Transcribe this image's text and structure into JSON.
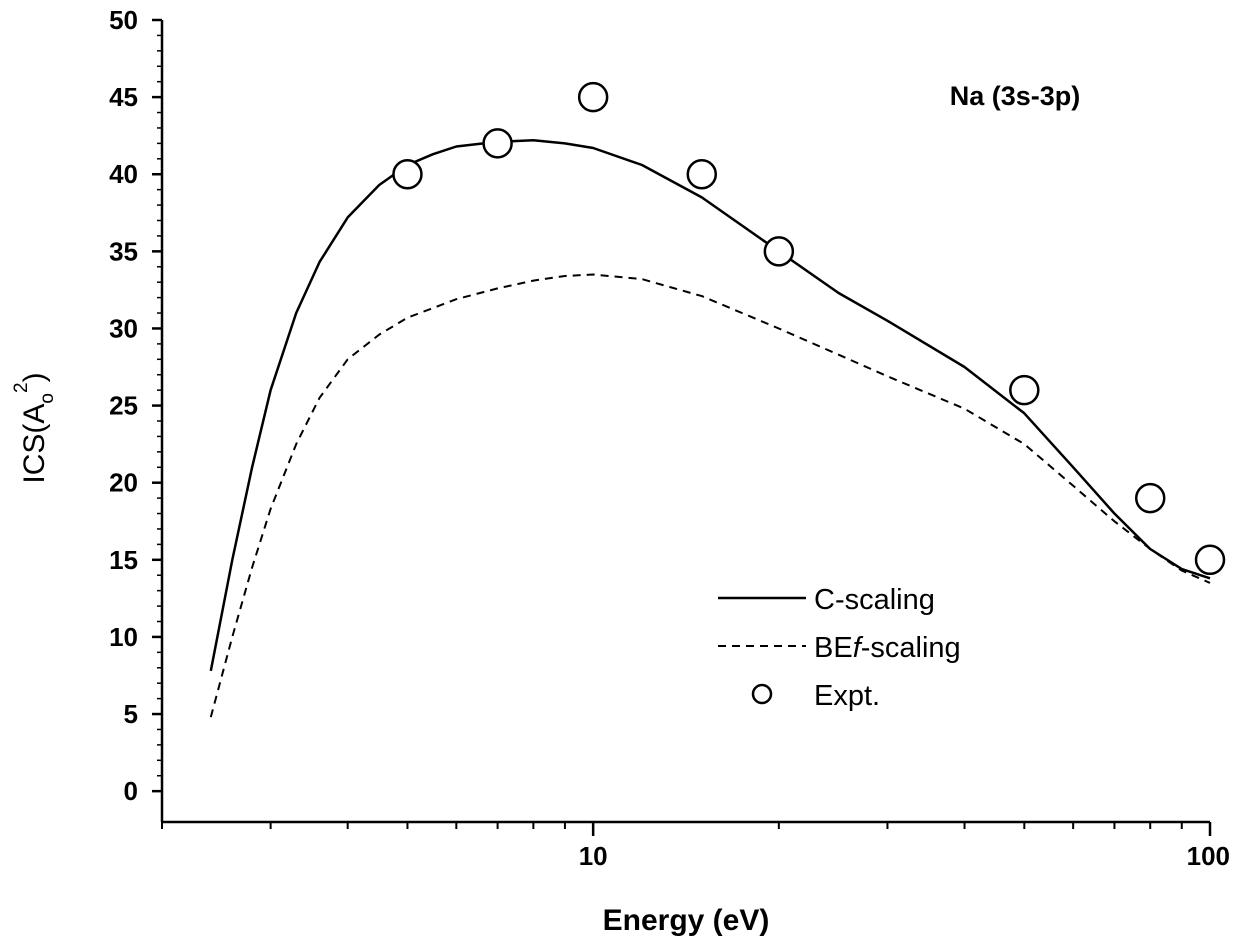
{
  "chart_data": {
    "type": "line",
    "title": "",
    "panel_label": "Na (3s-3p)",
    "xlabel": "Energy (eV)",
    "ylabel": {
      "base": "ICS(A",
      "subscript": "o",
      "superscript": "2",
      "close": ")"
    },
    "x_scale": "log",
    "xlim": [
      2,
      100
    ],
    "ylim": [
      -2,
      50
    ],
    "x_ticks_major": [
      10,
      100
    ],
    "x_tick_labels": [
      "10",
      "100"
    ],
    "x_ticks_minor": [
      2,
      3,
      4,
      5,
      6,
      7,
      8,
      9,
      20,
      30,
      40,
      50,
      60,
      70,
      80,
      90
    ],
    "y_ticks": [
      0,
      5,
      10,
      15,
      20,
      25,
      30,
      35,
      40,
      45,
      50
    ],
    "y_tick_labels": [
      "0",
      "5",
      "10",
      "15",
      "20",
      "25",
      "30",
      "35",
      "40",
      "45",
      "50"
    ],
    "grid": false,
    "legend_position": "bottom-right",
    "series": [
      {
        "name": "C-scaling",
        "style": "solid",
        "x": [
          2.4,
          2.6,
          2.8,
          3.0,
          3.3,
          3.6,
          4.0,
          4.5,
          5.0,
          5.5,
          6.0,
          7.0,
          8.0,
          9.0,
          10.0,
          12.0,
          15.0,
          20.0,
          25.0,
          30.0,
          40.0,
          50.0,
          60.0,
          70.0,
          80.0,
          90.0,
          100.0
        ],
        "y": [
          7.8,
          15.0,
          21.0,
          26.0,
          31.0,
          34.3,
          37.2,
          39.3,
          40.6,
          41.3,
          41.8,
          42.1,
          42.2,
          42.0,
          41.7,
          40.6,
          38.5,
          35.0,
          32.3,
          30.5,
          27.5,
          24.5,
          21.0,
          18.0,
          15.7,
          14.4,
          13.8
        ]
      },
      {
        "name": "BEf-scaling",
        "style": "dashed",
        "x": [
          2.4,
          2.6,
          2.8,
          3.0,
          3.3,
          3.6,
          4.0,
          4.5,
          5.0,
          6.0,
          7.0,
          8.0,
          9.0,
          10.0,
          12.0,
          15.0,
          20.0,
          25.0,
          30.0,
          40.0,
          50.0,
          60.0,
          70.0,
          80.0,
          90.0,
          100.0
        ],
        "y": [
          4.8,
          10.0,
          14.5,
          18.3,
          22.5,
          25.5,
          28.0,
          29.6,
          30.7,
          31.9,
          32.6,
          33.1,
          33.4,
          33.5,
          33.2,
          32.1,
          30.0,
          28.3,
          26.9,
          24.8,
          22.5,
          19.8,
          17.5,
          15.7,
          14.3,
          13.5
        ]
      },
      {
        "name": "Expt.",
        "style": "markers",
        "marker": "open-circle",
        "x": [
          5,
          7,
          10,
          15,
          20,
          50,
          80,
          100
        ],
        "y": [
          40,
          42,
          45,
          40,
          35,
          26,
          19,
          15
        ]
      }
    ],
    "legend": [
      {
        "label": "C-scaling",
        "style": "solid"
      },
      {
        "label": "BE",
        "label_italic": "f",
        "label_rest": "-scaling",
        "style": "dashed"
      },
      {
        "label": "Expt.",
        "style": "markers"
      }
    ]
  }
}
